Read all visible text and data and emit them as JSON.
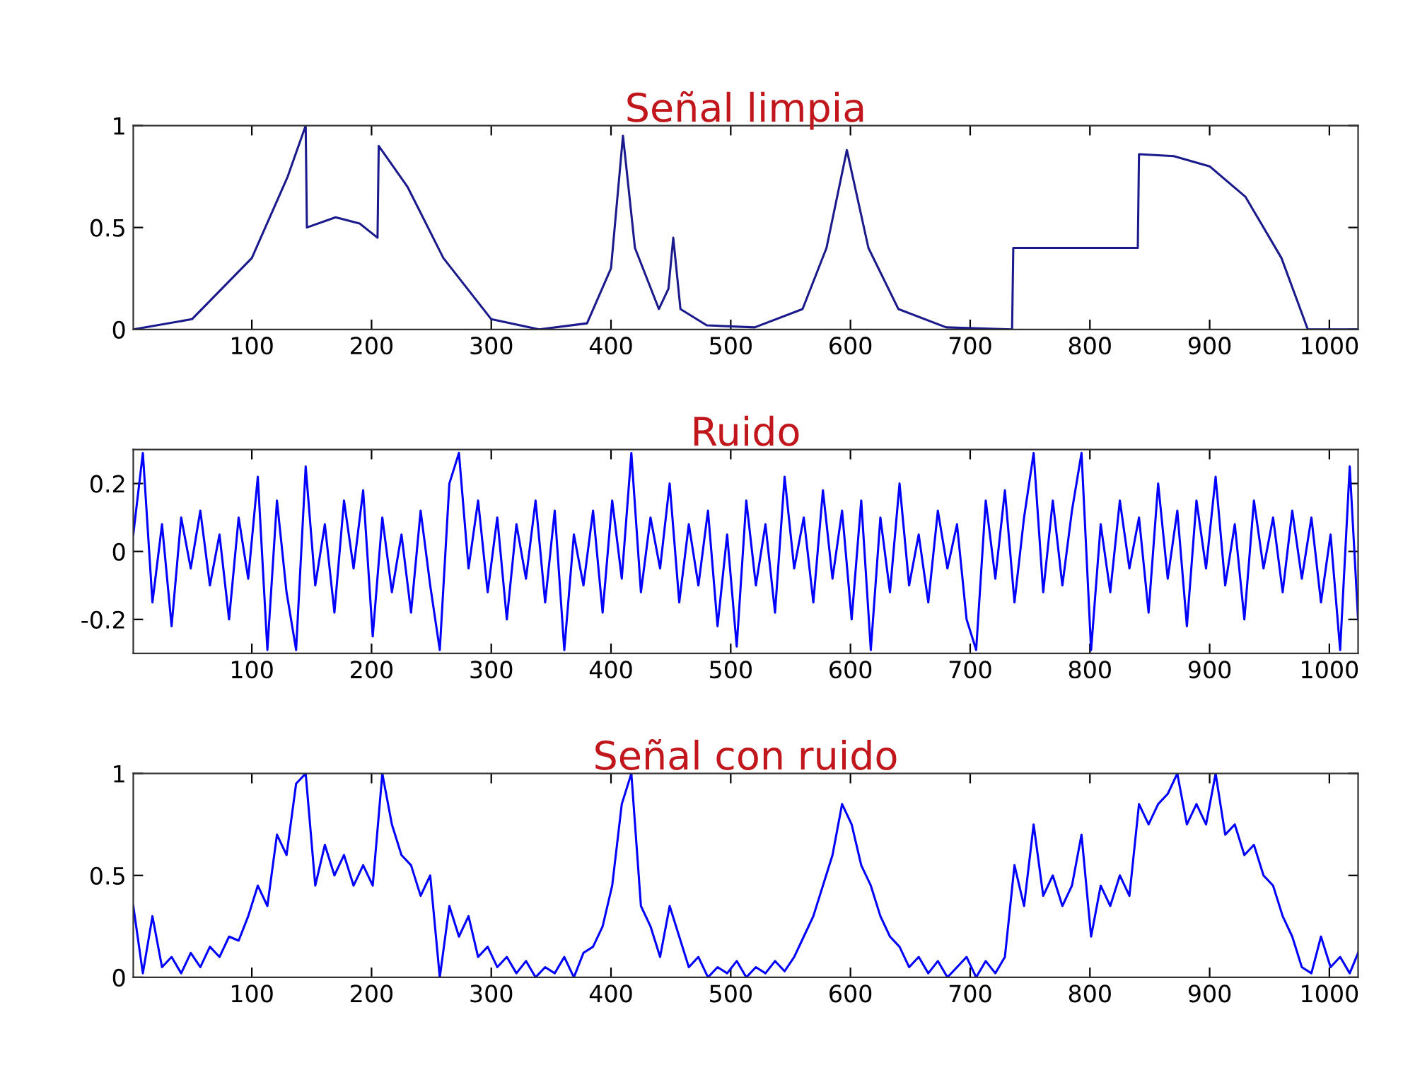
{
  "chart_data": [
    {
      "type": "line",
      "title": "Señal limpia",
      "xlim": [
        1,
        1024
      ],
      "xticks": [
        100,
        200,
        300,
        400,
        500,
        600,
        700,
        800,
        900,
        1000
      ],
      "ylim": [
        0,
        1
      ],
      "yticks": [
        0,
        0.5,
        1
      ],
      "grid": false,
      "series": [
        {
          "color": "#1a1a8c",
          "x": [
            1,
            50,
            100,
            130,
            145,
            146,
            170,
            190,
            205,
            206,
            230,
            260,
            300,
            340,
            380,
            400,
            410,
            420,
            440,
            448,
            452,
            458,
            480,
            520,
            560,
            580,
            597,
            615,
            640,
            680,
            735,
            736,
            840,
            841,
            870,
            900,
            930,
            960,
            982,
            1024
          ],
          "values": [
            0,
            0.05,
            0.35,
            0.75,
            1,
            0.5,
            0.55,
            0.52,
            0.45,
            0.9,
            0.7,
            0.35,
            0.05,
            0,
            0.03,
            0.3,
            0.95,
            0.4,
            0.1,
            0.2,
            0.45,
            0.1,
            0.02,
            0.01,
            0.1,
            0.4,
            0.88,
            0.4,
            0.1,
            0.01,
            0,
            0.4,
            0.4,
            0.86,
            0.85,
            0.8,
            0.65,
            0.35,
            0,
            0
          ]
        }
      ]
    },
    {
      "type": "line",
      "title": "Ruido",
      "xlim": [
        1,
        1024
      ],
      "xticks": [
        100,
        200,
        300,
        400,
        500,
        600,
        700,
        800,
        900,
        1000
      ],
      "ylim": [
        -0.3,
        0.3
      ],
      "yticks": [
        -0.2,
        0,
        0.2
      ],
      "grid": false,
      "series": [
        {
          "color": "#0000ff",
          "x": [
            1,
            9,
            17,
            25,
            33,
            41,
            49,
            57,
            65,
            73,
            81,
            89,
            97,
            105,
            113,
            121,
            129,
            137,
            145,
            153,
            161,
            169,
            177,
            185,
            193,
            201,
            209,
            217,
            225,
            233,
            241,
            249,
            257,
            265,
            273,
            281,
            289,
            297,
            305,
            313,
            321,
            329,
            337,
            345,
            353,
            361,
            369,
            377,
            385,
            393,
            401,
            409,
            417,
            425,
            433,
            441,
            449,
            457,
            465,
            473,
            481,
            489,
            497,
            505,
            513,
            521,
            529,
            537,
            545,
            553,
            561,
            569,
            577,
            585,
            593,
            601,
            609,
            617,
            625,
            633,
            641,
            649,
            657,
            665,
            673,
            681,
            689,
            697,
            705,
            713,
            721,
            729,
            737,
            745,
            753,
            761,
            769,
            777,
            785,
            793,
            801,
            809,
            817,
            825,
            833,
            841,
            849,
            857,
            865,
            873,
            881,
            889,
            897,
            905,
            913,
            921,
            929,
            937,
            945,
            953,
            961,
            969,
            977,
            985,
            993,
            1001,
            1009,
            1017,
            1024
          ],
          "values": [
            0.05,
            0.29,
            -0.15,
            0.08,
            -0.22,
            0.1,
            -0.05,
            0.12,
            -0.1,
            0.05,
            -0.2,
            0.1,
            -0.08,
            0.22,
            -0.29,
            0.15,
            -0.12,
            -0.29,
            0.25,
            -0.1,
            0.08,
            -0.18,
            0.15,
            -0.05,
            0.18,
            -0.25,
            0.1,
            -0.12,
            0.05,
            -0.18,
            0.12,
            -0.1,
            -0.29,
            0.2,
            0.29,
            -0.05,
            0.15,
            -0.12,
            0.1,
            -0.2,
            0.08,
            -0.08,
            0.15,
            -0.15,
            0.12,
            -0.29,
            0.05,
            -0.1,
            0.12,
            -0.18,
            0.15,
            -0.08,
            0.29,
            -0.12,
            0.1,
            -0.05,
            0.2,
            -0.15,
            0.08,
            -0.1,
            0.12,
            -0.22,
            0.05,
            -0.28,
            0.15,
            -0.1,
            0.08,
            -0.18,
            0.22,
            -0.05,
            0.1,
            -0.15,
            0.18,
            -0.08,
            0.12,
            -0.2,
            0.15,
            -0.29,
            0.1,
            -0.12,
            0.2,
            -0.1,
            0.05,
            -0.15,
            0.12,
            -0.05,
            0.08,
            -0.2,
            -0.29,
            0.15,
            -0.08,
            0.18,
            -0.15,
            0.1,
            0.29,
            -0.12,
            0.15,
            -0.1,
            0.12,
            0.29,
            -0.29,
            0.08,
            -0.12,
            0.15,
            -0.05,
            0.1,
            -0.18,
            0.2,
            -0.08,
            0.12,
            -0.22,
            0.15,
            -0.05,
            0.22,
            -0.1,
            0.08,
            -0.2,
            0.15,
            -0.05,
            0.1,
            -0.12,
            0.12,
            -0.08,
            0.1,
            -0.15,
            0.05,
            -0.29,
            0.25,
            -0.2
          ]
        }
      ]
    },
    {
      "type": "line",
      "title": "Señal con ruido",
      "xlim": [
        1,
        1024
      ],
      "xticks": [
        100,
        200,
        300,
        400,
        500,
        600,
        700,
        800,
        900,
        1000
      ],
      "ylim": [
        0,
        1
      ],
      "yticks": [
        0,
        0.5,
        1
      ],
      "grid": false,
      "series": [
        {
          "color": "#0000ff",
          "x": [
            1,
            9,
            17,
            25,
            33,
            41,
            49,
            57,
            65,
            73,
            81,
            89,
            97,
            105,
            113,
            121,
            129,
            137,
            145,
            153,
            161,
            169,
            177,
            185,
            193,
            201,
            209,
            217,
            225,
            233,
            241,
            249,
            257,
            265,
            273,
            281,
            289,
            297,
            305,
            313,
            321,
            329,
            337,
            345,
            353,
            361,
            369,
            377,
            385,
            393,
            401,
            409,
            417,
            425,
            433,
            441,
            449,
            457,
            465,
            473,
            481,
            489,
            497,
            505,
            513,
            521,
            529,
            537,
            545,
            553,
            561,
            569,
            577,
            585,
            593,
            601,
            609,
            617,
            625,
            633,
            641,
            649,
            657,
            665,
            673,
            681,
            689,
            697,
            705,
            713,
            721,
            729,
            737,
            745,
            753,
            761,
            769,
            777,
            785,
            793,
            801,
            809,
            817,
            825,
            833,
            841,
            849,
            857,
            865,
            873,
            881,
            889,
            897,
            905,
            913,
            921,
            929,
            937,
            945,
            953,
            961,
            969,
            977,
            985,
            993,
            1001,
            1009,
            1017,
            1024
          ],
          "values": [
            0.35,
            0.02,
            0.3,
            0.05,
            0.1,
            0.02,
            0.12,
            0.05,
            0.15,
            0.1,
            0.2,
            0.18,
            0.3,
            0.45,
            0.35,
            0.7,
            0.6,
            0.95,
            1,
            0.45,
            0.65,
            0.5,
            0.6,
            0.45,
            0.55,
            0.45,
            1,
            0.75,
            0.6,
            0.55,
            0.4,
            0.5,
            0,
            0.35,
            0.2,
            0.3,
            0.1,
            0.15,
            0.05,
            0.1,
            0.02,
            0.08,
            0,
            0.05,
            0.02,
            0.1,
            0,
            0.12,
            0.15,
            0.25,
            0.45,
            0.85,
            1,
            0.35,
            0.25,
            0.1,
            0.35,
            0.2,
            0.05,
            0.1,
            0,
            0.05,
            0.02,
            0.08,
            0,
            0.05,
            0.02,
            0.08,
            0.03,
            0.1,
            0.2,
            0.3,
            0.45,
            0.6,
            0.85,
            0.75,
            0.55,
            0.45,
            0.3,
            0.2,
            0.15,
            0.05,
            0.1,
            0.02,
            0.08,
            0,
            0.05,
            0.1,
            0,
            0.08,
            0.02,
            0.1,
            0.55,
            0.35,
            0.75,
            0.4,
            0.5,
            0.35,
            0.45,
            0.7,
            0.2,
            0.45,
            0.35,
            0.5,
            0.4,
            0.85,
            0.75,
            0.85,
            0.9,
            1,
            0.75,
            0.85,
            0.75,
            1,
            0.7,
            0.75,
            0.6,
            0.65,
            0.5,
            0.45,
            0.3,
            0.2,
            0.05,
            0.02,
            0.2,
            0.05,
            0.1,
            0.02,
            0.12
          ]
        }
      ]
    }
  ]
}
